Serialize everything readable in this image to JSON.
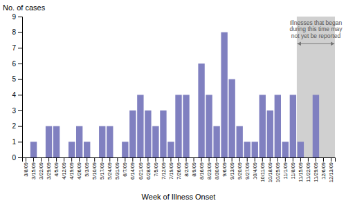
{
  "chart_data": {
    "type": "bar",
    "categories": [
      "3/8/09",
      "3/15/09",
      "3/22/09",
      "3/29/09",
      "4/5/09",
      "4/12/09",
      "4/19/09",
      "4/26/09",
      "5/3/09",
      "5/10/09",
      "5/17/09",
      "5/24/09",
      "5/31/09",
      "6/7/09",
      "6/14/09",
      "6/21/09",
      "6/28/09",
      "7/5/09",
      "7/12/09",
      "7/19/09",
      "7/26/09",
      "8/2/09",
      "8/9/09",
      "8/16/09",
      "8/23/09",
      "8/30/09",
      "9/6/09",
      "9/13/09",
      "9/20/09",
      "9/27/09",
      "10/4/09",
      "10/11/09",
      "10/18/09",
      "10/25/09",
      "11/1/09",
      "11/8/09",
      "11/15/09",
      "11/22/09",
      "11/29/09",
      "12/6/09",
      "12/13/09"
    ],
    "values": [
      0,
      1,
      0,
      2,
      2,
      0,
      1,
      2,
      1,
      0,
      2,
      2,
      0,
      1,
      3,
      4,
      3,
      2,
      3,
      1,
      4,
      4,
      0,
      6,
      4,
      2,
      8,
      5,
      2,
      1,
      1,
      4,
      3,
      4,
      1,
      4,
      1,
      0,
      4,
      0,
      0
    ],
    "color": "#8080c0",
    "x_label": "Week of Illness Onset",
    "y_label": "No. of cases",
    "ylim": [
      0,
      9
    ],
    "yticks": [
      0,
      1,
      2,
      3,
      4,
      5,
      6,
      7,
      8,
      9
    ],
    "annotations": [
      {
        "text": "Illnesses that began\nduring this time may\nnot yet be reported",
        "span": [
          "11/15/09",
          "12/13/09"
        ],
        "color": "#d0d0d0"
      }
    ]
  }
}
